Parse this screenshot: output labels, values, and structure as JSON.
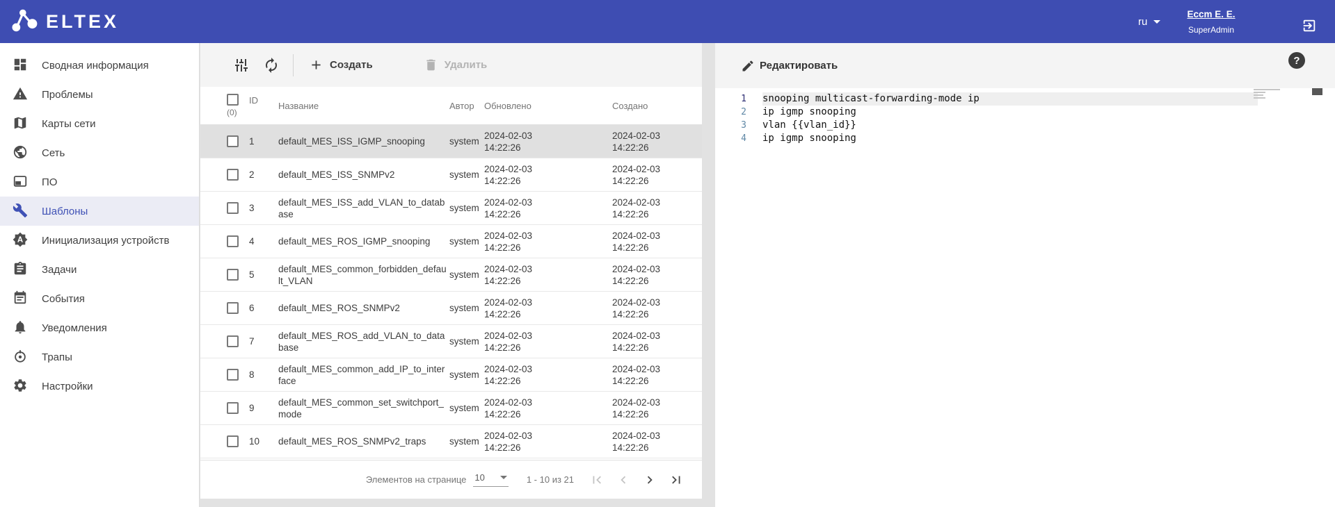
{
  "colors": {
    "header_bg": "#3e4db2",
    "accent": "#3f51b5",
    "selected_row": "#e0e0e0",
    "app_bg": "#e2e2e2"
  },
  "header": {
    "brand": "ELTEX",
    "language": "ru",
    "user_name": "Eccm E. E.",
    "user_role": "SuperAdmin"
  },
  "sidebar": {
    "items": [
      {
        "id": "summary",
        "label": "Сводная информация",
        "icon": "dashboard-icon",
        "active": false
      },
      {
        "id": "problems",
        "label": "Проблемы",
        "icon": "warning-icon",
        "active": false
      },
      {
        "id": "network-maps",
        "label": "Карты сети",
        "icon": "map-icon",
        "active": false
      },
      {
        "id": "network",
        "label": "Сеть",
        "icon": "globe-icon",
        "active": false
      },
      {
        "id": "software",
        "label": "ПО",
        "icon": "software-icon",
        "active": false
      },
      {
        "id": "templates",
        "label": "Шаблоны",
        "icon": "wrench-icon",
        "active": true
      },
      {
        "id": "device-init",
        "label": "Инициализация устройств",
        "icon": "auto-init-icon",
        "active": false
      },
      {
        "id": "tasks",
        "label": "Задачи",
        "icon": "tasks-icon",
        "active": false
      },
      {
        "id": "events",
        "label": "События",
        "icon": "calendar-icon",
        "active": false
      },
      {
        "id": "notifications",
        "label": "Уведомления",
        "icon": "bell-icon",
        "active": false
      },
      {
        "id": "traps",
        "label": "Трапы",
        "icon": "traps-icon",
        "active": false
      },
      {
        "id": "settings",
        "label": "Настройки",
        "icon": "gear-icon",
        "active": false
      }
    ]
  },
  "templates_panel": {
    "toolbar": {
      "create_label": "Создать",
      "delete_label": "Удалить"
    },
    "table": {
      "headers": {
        "selected_count": "(0)",
        "id": "ID",
        "name": "Название",
        "author": "Автор",
        "updated": "Обновлено",
        "created": "Создано"
      },
      "rows": [
        {
          "id": "1",
          "name": "default_MES_ISS_IGMP_snooping",
          "author": "system",
          "updated_date": "2024-02-03",
          "updated_time": "14:22:26",
          "created_date": "2024-02-03",
          "created_time": "14:22:26",
          "selected": true
        },
        {
          "id": "2",
          "name": "default_MES_ISS_SNMPv2",
          "author": "system",
          "updated_date": "2024-02-03",
          "updated_time": "14:22:26",
          "created_date": "2024-02-03",
          "created_time": "14:22:26",
          "selected": false
        },
        {
          "id": "3",
          "name": "default_MES_ISS_add_VLAN_to_database",
          "author": "system",
          "updated_date": "2024-02-03",
          "updated_time": "14:22:26",
          "created_date": "2024-02-03",
          "created_time": "14:22:26",
          "selected": false
        },
        {
          "id": "4",
          "name": "default_MES_ROS_IGMP_snooping",
          "author": "system",
          "updated_date": "2024-02-03",
          "updated_time": "14:22:26",
          "created_date": "2024-02-03",
          "created_time": "14:22:26",
          "selected": false
        },
        {
          "id": "5",
          "name": "default_MES_common_forbidden_default_VLAN",
          "author": "system",
          "updated_date": "2024-02-03",
          "updated_time": "14:22:26",
          "created_date": "2024-02-03",
          "created_time": "14:22:26",
          "selected": false
        },
        {
          "id": "6",
          "name": "default_MES_ROS_SNMPv2",
          "author": "system",
          "updated_date": "2024-02-03",
          "updated_time": "14:22:26",
          "created_date": "2024-02-03",
          "created_time": "14:22:26",
          "selected": false
        },
        {
          "id": "7",
          "name": "default_MES_ROS_add_VLAN_to_database",
          "author": "system",
          "updated_date": "2024-02-03",
          "updated_time": "14:22:26",
          "created_date": "2024-02-03",
          "created_time": "14:22:26",
          "selected": false
        },
        {
          "id": "8",
          "name": "default_MES_common_add_IP_to_interface",
          "author": "system",
          "updated_date": "2024-02-03",
          "updated_time": "14:22:26",
          "created_date": "2024-02-03",
          "created_time": "14:22:26",
          "selected": false
        },
        {
          "id": "9",
          "name": "default_MES_common_set_switchport_mode",
          "author": "system",
          "updated_date": "2024-02-03",
          "updated_time": "14:22:26",
          "created_date": "2024-02-03",
          "created_time": "14:22:26",
          "selected": false
        },
        {
          "id": "10",
          "name": "default_MES_ROS_SNMPv2_traps",
          "author": "system",
          "updated_date": "2024-02-03",
          "updated_time": "14:22:26",
          "created_date": "2024-02-03",
          "created_time": "14:22:26",
          "selected": false
        }
      ]
    },
    "pagination": {
      "items_per_page_label": "Элементов на странице",
      "page_size": "10",
      "range": "1 - 10 из 21"
    }
  },
  "editor_panel": {
    "edit_label": "Редактировать",
    "help_label": "?",
    "code_lines": [
      {
        "number": "1",
        "text": "snooping multicast-forwarding-mode ip",
        "active": true
      },
      {
        "number": "2",
        "text": "ip igmp snooping",
        "active": false
      },
      {
        "number": "3",
        "text": "vlan {{vlan_id}}",
        "active": false
      },
      {
        "number": "4",
        "text": "ip igmp snooping",
        "active": false
      }
    ]
  }
}
